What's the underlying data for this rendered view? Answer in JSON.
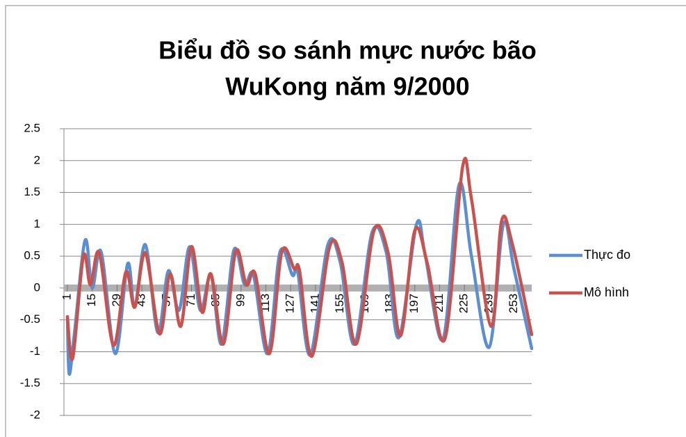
{
  "chart_data": {
    "type": "line",
    "title": [
      "Biểu đồ so sánh mực nước bão",
      "WuKong năm 9/2000"
    ],
    "xlim": [
      1,
      263
    ],
    "xticks": [
      1,
      15,
      29,
      43,
      57,
      71,
      85,
      99,
      113,
      127,
      141,
      155,
      169,
      183,
      197,
      211,
      225,
      239,
      253
    ],
    "ylim": [
      -2,
      2.5
    ],
    "yticks": [
      -2,
      -1.5,
      -1,
      -0.5,
      0,
      0.5,
      1,
      1.5,
      2,
      2.5
    ],
    "grid": true,
    "legend": "right",
    "series": [
      {
        "name": "Thực đo",
        "color": "#5b8fd0",
        "x": [
          1,
          2,
          5,
          11,
          15,
          20,
          28,
          35,
          39,
          45,
          52,
          58,
          64,
          70,
          76,
          82,
          88,
          95,
          101,
          106,
          114,
          121,
          128,
          131,
          138,
          148,
          155,
          163,
          173,
          181,
          188,
          198,
          203,
          213,
          222,
          229,
          239,
          247,
          253,
          263
        ],
        "values": [
          -0.45,
          -1.35,
          -0.7,
          0.75,
          0.0,
          0.57,
          -1.03,
          0.38,
          -0.3,
          0.68,
          -0.7,
          0.27,
          -0.35,
          0.65,
          -0.35,
          0.2,
          -0.88,
          0.6,
          0.05,
          0.2,
          -1.03,
          0.57,
          0.2,
          0.25,
          -1.05,
          0.68,
          0.4,
          -0.88,
          0.88,
          0.55,
          -0.78,
          1.0,
          0.5,
          -0.8,
          1.62,
          0.5,
          -0.93,
          1.0,
          0.3,
          -0.95
        ]
      },
      {
        "name": "Mô hình",
        "color": "#c9524f",
        "x": [
          1,
          4,
          10,
          14,
          19,
          27,
          34,
          39,
          45,
          53,
          59,
          65,
          71,
          77,
          82,
          89,
          96,
          102,
          107,
          115,
          122,
          129,
          132,
          139,
          149,
          156,
          164,
          174,
          182,
          189,
          197,
          204,
          214,
          224,
          229,
          240,
          246,
          252,
          263
        ],
        "values": [
          -0.45,
          -1.1,
          0.5,
          0.05,
          0.55,
          -0.9,
          0.25,
          -0.3,
          0.55,
          -0.72,
          0.22,
          -0.6,
          0.65,
          -0.38,
          0.22,
          -0.88,
          0.58,
          0.05,
          0.22,
          -1.03,
          0.57,
          0.3,
          0.27,
          -1.07,
          0.65,
          0.4,
          -0.88,
          0.9,
          0.55,
          -0.75,
          0.9,
          0.4,
          -0.8,
          1.9,
          1.4,
          -0.6,
          1.05,
          0.7,
          -0.73
        ]
      }
    ]
  }
}
